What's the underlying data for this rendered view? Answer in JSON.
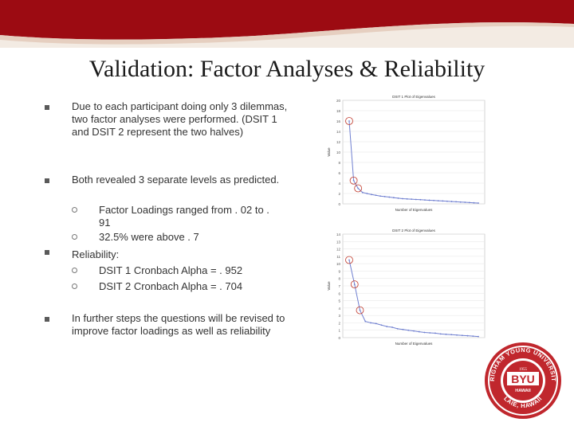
{
  "title": "Validation: Factor Analyses & Reliability",
  "colors": {
    "banner": "#9c0b12",
    "banner_light": "#f1e7dd",
    "chart_line": "#6f7fd0",
    "circle": "#c0392b",
    "logo_red": "#c0272d"
  },
  "bullets": [
    {
      "text": "Due to each participant doing only 3 dilemmas, two factor analyses were performed. (DSIT 1 and DSIT 2 represent the two halves)"
    },
    {
      "text": "Both revealed 3 separate levels as predicted.",
      "sub": [
        "Factor Loadings ranged from . 02 to . 91",
        "32.5% were above . 7"
      ]
    },
    {
      "text": "Reliability:",
      "sub": [
        "DSIT 1 Cronbach Alpha = . 952",
        "DSIT 2 Cronbach Alpha = . 704"
      ]
    },
    {
      "text": "In further steps the questions will be revised to improve factor loadings as well as reliability"
    }
  ],
  "logo": {
    "name": "BYU",
    "ring_text": "BRIGHAM YOUNG UNIVERSITY",
    "year": "1955",
    "sub": "HAWAII",
    "location": "LAIE, HAWAII"
  },
  "chart_data": [
    {
      "type": "line",
      "title": "DSIT 1 Plot of Eigenvalues",
      "xlabel": "Number of Eigenvalues",
      "ylabel": "Value",
      "ylim": [
        0,
        20
      ],
      "yticks": [
        0,
        2,
        4,
        6,
        8,
        10,
        12,
        14,
        16,
        18,
        20
      ],
      "x": [
        1,
        2,
        3,
        4,
        5,
        6,
        7,
        8,
        9,
        10,
        11,
        12,
        13,
        14,
        15,
        16,
        17,
        18,
        19,
        20,
        21,
        22,
        23,
        24,
        25,
        26,
        27,
        28,
        29,
        30
      ],
      "values": [
        16.0,
        4.5,
        3.0,
        2.2,
        2.0,
        1.8,
        1.65,
        1.5,
        1.4,
        1.3,
        1.2,
        1.1,
        1.0,
        0.95,
        0.9,
        0.85,
        0.8,
        0.75,
        0.7,
        0.65,
        0.6,
        0.55,
        0.5,
        0.45,
        0.4,
        0.35,
        0.3,
        0.25,
        0.2,
        0.15
      ],
      "circled": [
        1,
        2,
        3
      ]
    },
    {
      "type": "line",
      "title": "DSIT 2 Plot of Eigenvalues",
      "xlabel": "Number of Eigenvalues",
      "ylabel": "Value",
      "ylim": [
        0,
        14
      ],
      "yticks": [
        0,
        1,
        2,
        3,
        4,
        5,
        6,
        7,
        8,
        9,
        10,
        11,
        12,
        13,
        14
      ],
      "x": [
        1,
        2,
        3,
        4,
        5,
        6,
        7,
        8,
        9,
        10,
        11,
        12,
        13,
        14,
        15,
        16,
        17,
        18,
        19,
        20,
        21,
        22,
        23,
        24,
        25
      ],
      "values": [
        10.5,
        7.2,
        3.7,
        2.2,
        2.0,
        1.9,
        1.7,
        1.5,
        1.4,
        1.2,
        1.1,
        1.0,
        0.9,
        0.8,
        0.7,
        0.65,
        0.6,
        0.5,
        0.45,
        0.4,
        0.35,
        0.3,
        0.25,
        0.2,
        0.15
      ],
      "circled": [
        1,
        2,
        3
      ]
    }
  ]
}
